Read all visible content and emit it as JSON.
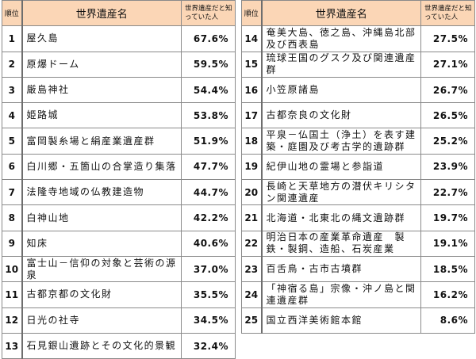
{
  "header": {
    "rank": "順位",
    "name": "世界遺産名",
    "percent": "世界遺産だと知っていた人"
  },
  "left_rows": [
    {
      "rank": "1",
      "name": "屋久島",
      "percent": "67.6%"
    },
    {
      "rank": "2",
      "name": "原爆ドーム",
      "percent": "59.5%"
    },
    {
      "rank": "3",
      "name": "厳島神社",
      "percent": "54.4%"
    },
    {
      "rank": "4",
      "name": "姫路城",
      "percent": "53.8%"
    },
    {
      "rank": "5",
      "name": "富岡製糸場と絹産業遺産群",
      "percent": "51.9%"
    },
    {
      "rank": "6",
      "name": "白川郷・五箇山の合掌造り集落",
      "percent": "47.7%"
    },
    {
      "rank": "7",
      "name": "法隆寺地域の仏教建造物",
      "percent": "44.7%"
    },
    {
      "rank": "8",
      "name": "白神山地",
      "percent": "42.2%"
    },
    {
      "rank": "9",
      "name": "知床",
      "percent": "40.6%"
    },
    {
      "rank": "10",
      "name": "富士山－信仰の対象と芸術の源泉",
      "percent": "37.0%"
    },
    {
      "rank": "11",
      "name": "古都京都の文化財",
      "percent": "35.5%"
    },
    {
      "rank": "12",
      "name": "日光の社寺",
      "percent": "34.5%"
    },
    {
      "rank": "13",
      "name": "石見銀山遺跡とその文化的景観",
      "percent": "32.4%"
    }
  ],
  "right_rows": [
    {
      "rank": "14",
      "name": "奄美大島、徳之島、沖縄島北部及び西表島",
      "percent": "27.5%"
    },
    {
      "rank": "15",
      "name": "琉球王国のグスク及び関連遺産群",
      "percent": "27.1%"
    },
    {
      "rank": "16",
      "name": "小笠原諸島",
      "percent": "26.7%"
    },
    {
      "rank": "17",
      "name": "古都奈良の文化財",
      "percent": "26.5%"
    },
    {
      "rank": "18",
      "name": "平泉－仏国土（浄土）を表す建築・庭園及び考古学的遺跡群",
      "percent": "25.2%"
    },
    {
      "rank": "19",
      "name": "紀伊山地の霊場と参詣道",
      "percent": "23.9%"
    },
    {
      "rank": "20",
      "name": "長崎と天草地方の潜伏キリシタン関連遺産",
      "percent": "22.7%"
    },
    {
      "rank": "21",
      "name": "北海道・北東北の縄文遺跡群",
      "percent": "19.7%"
    },
    {
      "rank": "22",
      "name": "明治日本の産業革命遺産　製鉄・製鋼、造船、石炭産業",
      "percent": "19.1%"
    },
    {
      "rank": "23",
      "name": "百舌鳥・古市古墳群",
      "percent": "18.5%"
    },
    {
      "rank": "24",
      "name": "「神宿る島」宗像・沖ノ島と関連遺産群",
      "percent": "16.2%"
    },
    {
      "rank": "25",
      "name": "国立西洋美術館本館",
      "percent": "8.6%"
    }
  ]
}
